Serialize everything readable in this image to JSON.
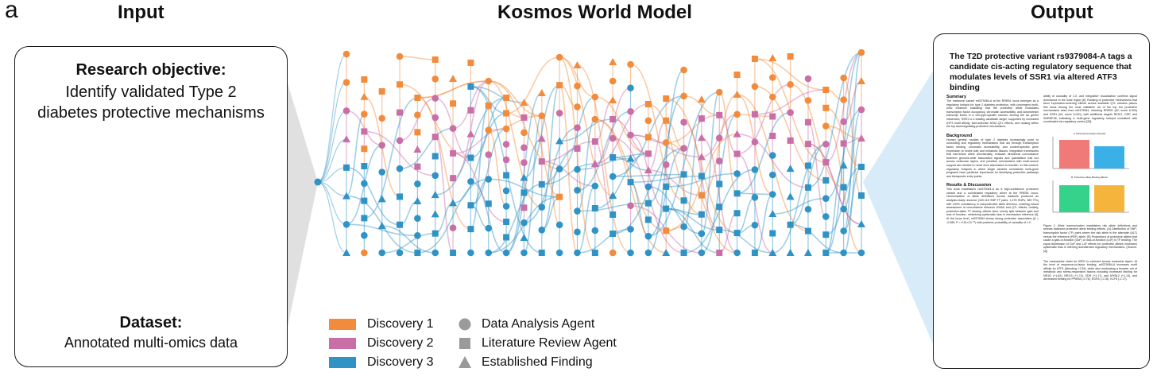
{
  "panel_letter": "a",
  "headers": {
    "input": "Input",
    "model": "Kosmos World Model",
    "output": "Output"
  },
  "input_card": {
    "objective_title": "Research objective:",
    "objective_line1": "Identify validated Type 2",
    "objective_line2": "diabetes protective mechanisms",
    "dataset_title": "Dataset:",
    "dataset_text": "Annotated multi-omics data"
  },
  "colors": {
    "discovery1": "#f28c3c",
    "discovery2": "#c96ea6",
    "discovery3": "#2f93c6",
    "cluster_red": "#a83a2a",
    "cluster_blue": "#2aa3d0",
    "cluster_orange": "#f28c3c",
    "cluster_pink": "#e09ac3",
    "cluster_green": "#3c9a5b",
    "cluster_purple": "#8a63b0"
  },
  "legend": {
    "colors": [
      {
        "label": "Discovery 1",
        "key": "discovery1"
      },
      {
        "label": "Discovery 2",
        "key": "discovery2"
      },
      {
        "label": "Discovery 3",
        "key": "discovery3"
      }
    ],
    "shapes": [
      {
        "label": "Data Analysis Agent",
        "shape": "circle"
      },
      {
        "label": "Literature Review Agent",
        "shape": "square"
      },
      {
        "label": "Established Finding",
        "shape": "triangle"
      }
    ]
  },
  "paper": {
    "title": "The T2D protective variant rs9379084-A tags a candidate cis-acting regulatory sequence that modulates levels of SSR1 via altered ATF3 binding",
    "summary_heading": "Summary",
    "summary_text": "The missense variant rs9379084-A at the RREB1 locus emerges as a regulatory hotspot for type 2 diabetes protection, with convergent multi-omic evidence indicating that the protective allele modulates transcription factor occupancy, chromatin accessibility, and downstream transcript levels in a cell-type-specific manner. Among the six genes influenced, SSR1 is a leading candidate target, supported by increased ATF3 motif affinity, islet-selective ATAC-QTL effects, and ranking within the top downregulating protective mechanisms.",
    "background_heading": "Background",
    "background_text": "Human genetic studies of type 2 diabetes increasingly point to noncoding and regulatory mechanisms that act through transcription factor binding, chromatin accessibility, and context-specific gene expression to rewire islet and metabolic tissues. Integrative frameworks that harmonize allele directionality, evaluate directional concordance between genome-wide association signals and quantitative trait loci across molecular layers, and prioritize mechanisms with multi-source support are needed to move from association to function. In this context, regulatory hotspots in which single variants orchestrate multi-gene programs have particular importance for identifying protective pathways and therapeutic entry points.",
    "results_heading": "Results & Discussion",
    "results_text": "This work establishes rs9379084-A as a high-confidence protective variant and a coordinated regulatory driver at the RREB1 locus. Harmonization of allele definitions across datasets produced an analysis-ready resource (100,116 SNP-TF pairs; 1,276 SNPs; 389 TFs) with 100% consistency in risk/protective allele direction, enabling robust assessment of concordance between GWAS and QTL effects; notably, protective-allele TF binding effects were evenly split between gain and loss of function, minimizing systematic bias in mechanism inference [4]. At the locus level, rs9379084 shows strong protective association (β = -0.085, P = 9.51×10⁻²⁷) with posterior probability of causality of 1.0.",
    "right_text_top": "ability of causality of 1.0, and integrative visualization confirms signal dominance in the local region [6]. Ranking of protective mechanisms that favor expression-lowering effects across available QTL streams places this locus among the most validated: six of the top ten protective mechanisms arise from rs9379084, including RREB1 (#2; score 6.000) and SSR1 (#4; score 5.000), with additional targets RIOK1, DSP, and SNRNP48, indicating a multi-gene regulatory hotspot consistent with coordinated cis-regulatory control [28].",
    "figure_caption": "Figure 1: Allele harmonization establishes risk allele definitions and reveals balanced protective allele binding effects. (A) Distribution of SNP-transcription factor (TF) pairs where the risk allele is the alternate (ALT) versus the reference (REF) allele. (B) Proportions of protective alleles that cause a gain-of-function (GoF) or loss-of-function (LoF) in TF binding. The equal distribution of GoF and LoF effects for protective alleles minimizes systematic bias in inferring downstream regulatory mechanisms. (Source: [4])",
    "right_text_bottom": "The mechanistic chain for SSR1 is coherent across molecular layers. At the level of sequence-to-factor binding, rs9379084-A increases motif affinity for ATF3 (Δbinding +1.39), while also modulating a broader set of metabolic and stress-responsive factors including increased binding for NR1I2 (+1.62), NR1I3 (+1.74), VDR (+1.17), and MYBL2 (+1.13), and decreased binding for PPARA (-0.76), EGR4 (-1.15), KLF6 (-1.17).",
    "mini_chart_a_title": "A. Risk Harmonization Results",
    "mini_chart_b_title": "B. Protective Allele Binding Effects"
  }
}
